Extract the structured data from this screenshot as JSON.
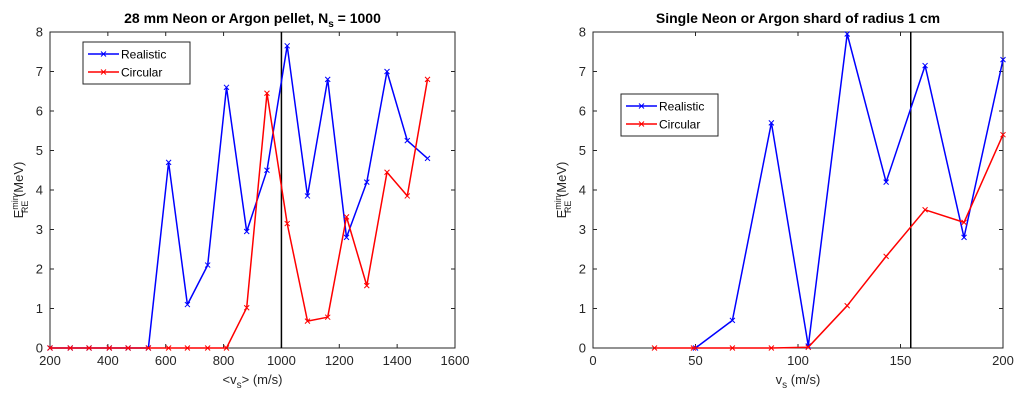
{
  "chart_data": [
    {
      "type": "line",
      "title": "28 mm Neon or Argon pellet, N",
      "title_sub": "s",
      "title_suffix": " = 1000",
      "xlabel": "<v",
      "xlabel_sub": "s",
      "xlabel_suffix": "> (m/s)",
      "ylabel": "E",
      "ylabel_sup": "min",
      "ylabel_sub": "RE",
      "ylabel_suffix": " (MeV)",
      "xlim": [
        200,
        1600
      ],
      "ylim": [
        0,
        8
      ],
      "xticks": [
        200,
        400,
        600,
        800,
        1000,
        1200,
        1400,
        1600
      ],
      "yticks": [
        0,
        1,
        2,
        3,
        4,
        5,
        6,
        7,
        8
      ],
      "vline": 1000,
      "legend_position": "top-left",
      "series": [
        {
          "name": "Realistic",
          "color": "#0000ff",
          "x": [
            200,
            270,
            335,
            405,
            470,
            540,
            610,
            675,
            745,
            810,
            880,
            950,
            1020,
            1090,
            1160,
            1225,
            1295,
            1365,
            1435,
            1505
          ],
          "y": [
            0,
            0,
            0,
            0,
            0,
            0,
            4.7,
            1.1,
            2.1,
            6.6,
            2.95,
            4.5,
            7.65,
            3.85,
            6.8,
            2.8,
            4.2,
            7.0,
            5.25,
            4.8
          ]
        },
        {
          "name": "Circular",
          "color": "#ff0000",
          "x": [
            200,
            270,
            335,
            405,
            470,
            540,
            610,
            675,
            745,
            810,
            880,
            950,
            1020,
            1090,
            1160,
            1225,
            1295,
            1365,
            1435,
            1505
          ],
          "y": [
            0,
            0,
            0,
            0,
            0,
            0,
            0,
            0,
            0,
            0,
            1.02,
            6.45,
            3.15,
            0.68,
            0.78,
            3.32,
            1.58,
            4.45,
            3.85,
            6.8
          ]
        }
      ]
    },
    {
      "type": "line",
      "title": "Single Neon or Argon shard of radius 1 cm",
      "xlabel": "v",
      "xlabel_sub": "s",
      "xlabel_suffix": " (m/s)",
      "ylabel": "E",
      "ylabel_sup": "min",
      "ylabel_sub": "RE",
      "ylabel_suffix": " (MeV)",
      "xlim": [
        0,
        200
      ],
      "ylim": [
        0,
        8
      ],
      "xticks": [
        0,
        50,
        100,
        150,
        200
      ],
      "yticks": [
        0,
        1,
        2,
        3,
        4,
        5,
        6,
        7,
        8
      ],
      "vline": 155,
      "legend_position": "left",
      "series": [
        {
          "name": "Realistic",
          "color": "#0000ff",
          "x": [
            50,
            68,
            87,
            105,
            124,
            143,
            162,
            181,
            200
          ],
          "y": [
            0,
            0.7,
            5.7,
            0.05,
            7.95,
            4.2,
            7.15,
            2.8,
            7.3
          ]
        },
        {
          "name": "Circular",
          "color": "#ff0000",
          "x": [
            30,
            49,
            68,
            87,
            105,
            124,
            143,
            162,
            181,
            200
          ],
          "y": [
            0,
            0,
            0,
            0,
            0.02,
            1.07,
            2.32,
            3.5,
            3.18,
            5.4
          ]
        }
      ]
    }
  ]
}
